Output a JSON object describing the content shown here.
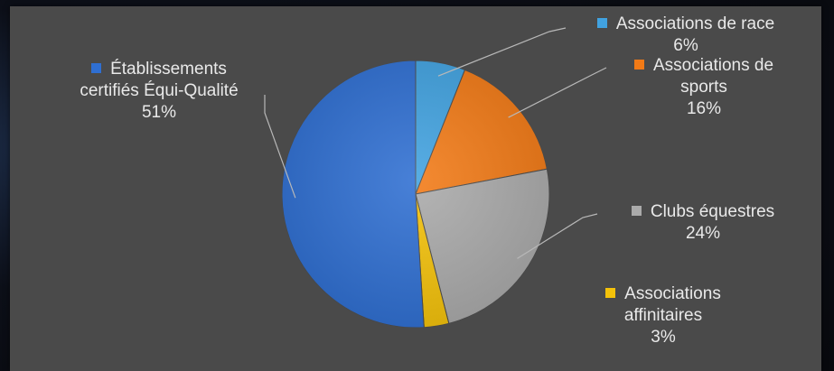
{
  "chart_data": {
    "type": "pie",
    "title": "",
    "slices": [
      {
        "label": "Associations de race",
        "percent_label": "6%",
        "value": 6,
        "color": "#41a2e0"
      },
      {
        "label": "Associations de sports",
        "percent_label": "16%",
        "value": 16,
        "color": "#f27a16"
      },
      {
        "label": "Clubs équestres",
        "percent_label": "24%",
        "value": 24,
        "color": "#aaaaaa"
      },
      {
        "label": "Associations affinitaires",
        "percent_label": "3%",
        "value": 3,
        "color": "#f4c20a"
      },
      {
        "label": "Établissements certifiés Équi-Qualité",
        "percent_label": "51%",
        "value": 51,
        "color": "#2f6fd2"
      }
    ]
  }
}
